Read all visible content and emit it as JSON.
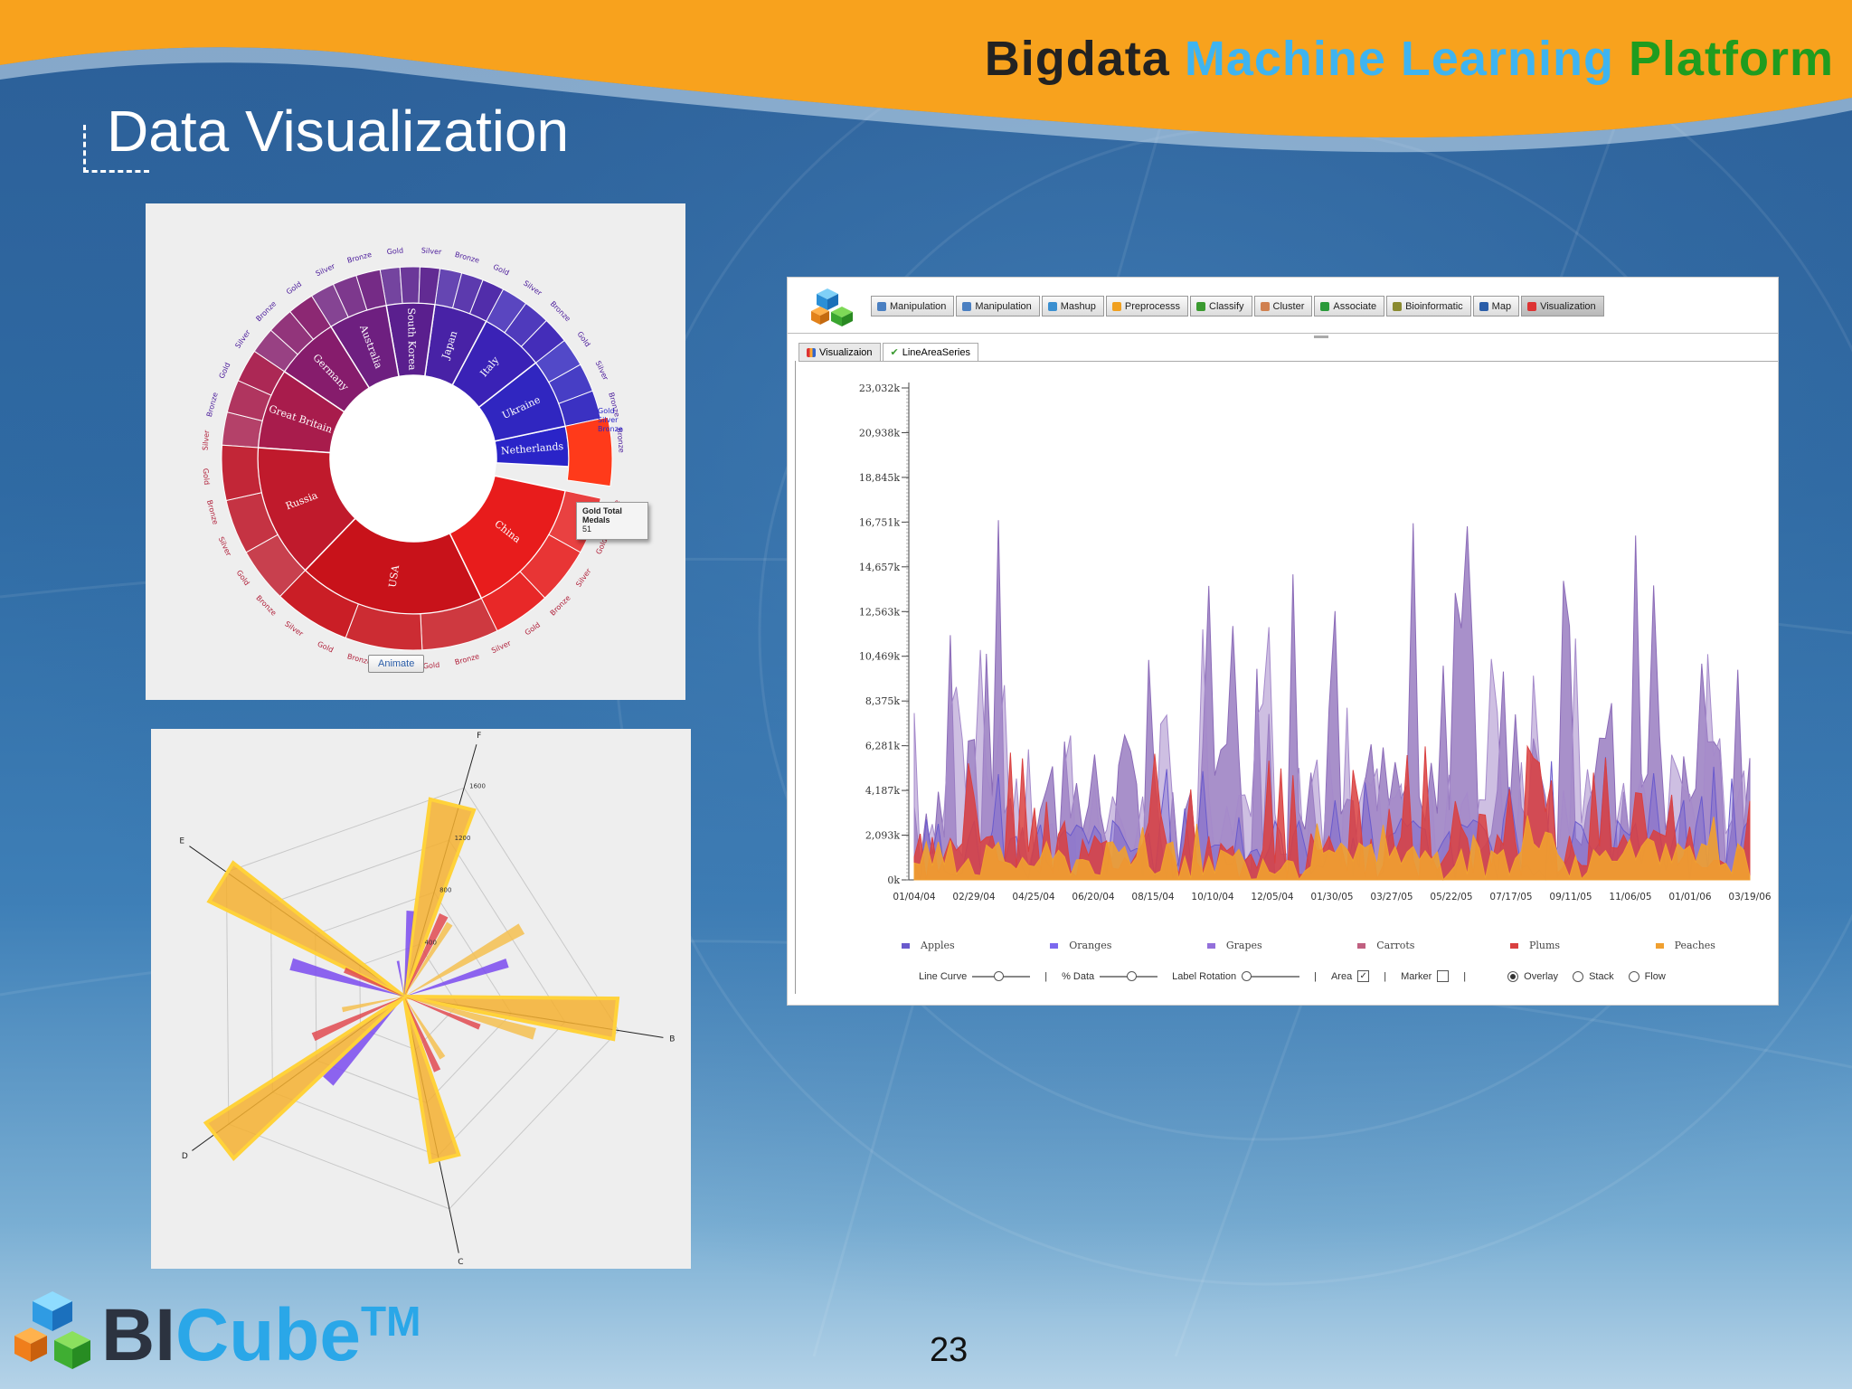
{
  "header": {
    "title_part1": "Bigdata",
    "title_part2": "Machine Learning",
    "title_part3": "Platform",
    "colors": {
      "orange": "#f8a21d",
      "part1": "#222222",
      "part2": "#3fb4f0",
      "part3": "#1f9c1f"
    }
  },
  "slide": {
    "title": "Data Visualization",
    "page_number": "23"
  },
  "brand": {
    "text1": "BI",
    "text2": "Cube",
    "tm": "TM"
  },
  "sunburst": {
    "inner": [
      "Netherlands",
      "Ukraine",
      "Italy",
      "Japan",
      "South Korea",
      "Australia",
      "Germany",
      "Great Britain",
      "Russia",
      "USA",
      "China"
    ],
    "outer_labels": [
      "Gold",
      "Silver",
      "Bronze"
    ],
    "tooltip_title": "Gold Total Medals",
    "tooltip_value": "51",
    "animate_label": "Animate",
    "medal_labels_visible": [
      "Bronze",
      "Gold",
      "Silver",
      "Bronze",
      "Gold",
      "Silver",
      "Bronze",
      "Gold",
      "Silver",
      "Bronze",
      "Gold",
      "Silver",
      "Bronze",
      "Gold",
      "Silver",
      "Bronze",
      "Gold",
      "Silver",
      "Bronze",
      "Gold",
      "Silver",
      "Bronze",
      "Gold",
      "Silver",
      "Bronze",
      "Gold",
      "Silver",
      "Bronze",
      "Gold",
      "Silver",
      "Bronze",
      "Gold",
      "Silver",
      "Bronze"
    ]
  },
  "radar": {
    "axes": [
      "F",
      "B",
      "C",
      "D",
      "E"
    ],
    "ticks": [
      "1600",
      "1200",
      "800",
      "400"
    ]
  },
  "app": {
    "toolbar": [
      {
        "label": "Manipulation",
        "icon": "table-icon"
      },
      {
        "label": "Manipulation",
        "icon": "table-icon"
      },
      {
        "label": "Mashup",
        "icon": "people-icon"
      },
      {
        "label": "Preprocesss",
        "icon": "gear-icon"
      },
      {
        "label": "Classify",
        "icon": "check-icon"
      },
      {
        "label": "Cluster",
        "icon": "cluster-icon"
      },
      {
        "label": "Associate",
        "icon": "link-icon"
      },
      {
        "label": "Bioinformatic",
        "icon": "dna-icon"
      },
      {
        "label": "Map",
        "icon": "map-icon"
      },
      {
        "label": "Visualization",
        "icon": "chart-icon"
      }
    ],
    "subtabs": [
      {
        "label": "Visualizaion",
        "icon": "chart-icon"
      },
      {
        "label": "LineAreaSeries",
        "icon": "check-icon"
      }
    ],
    "legend": [
      {
        "name": "Apples",
        "color": "#6a5acd"
      },
      {
        "name": "Oranges",
        "color": "#7b68ee"
      },
      {
        "name": "Grapes",
        "color": "#9370db"
      },
      {
        "name": "Carrots",
        "color": "#c06080"
      },
      {
        "name": "Plums",
        "color": "#d94040"
      },
      {
        "name": "Peaches",
        "color": "#f0a030"
      }
    ],
    "controls": {
      "line_curve": "Line Curve",
      "pct_data": "% Data",
      "label_rotation": "Label Rotation",
      "area": "Area",
      "marker": "Marker",
      "overlay": "Overlay",
      "stack": "Stack",
      "flow": "Flow",
      "area_checked": "☑"
    }
  },
  "chart_data": {
    "type": "area",
    "y_ticks": [
      "0k",
      "2,093k",
      "4,187k",
      "6,281k",
      "8,375k",
      "10,469k",
      "12,563k",
      "14,657k",
      "16,751k",
      "18,845k",
      "20,938k",
      "23,032k"
    ],
    "x_ticks": [
      "01/04/04",
      "02/29/04",
      "04/25/04",
      "06/20/04",
      "08/15/04",
      "10/10/04",
      "12/05/04",
      "01/30/05",
      "03/27/05",
      "05/22/05",
      "07/17/05",
      "09/11/05",
      "11/06/05",
      "01/01/06",
      "03/19/06"
    ],
    "ylim": [
      0,
      23032
    ],
    "series_names": [
      "Apples",
      "Oranges",
      "Grapes",
      "Carrots",
      "Plums",
      "Peaches"
    ]
  }
}
